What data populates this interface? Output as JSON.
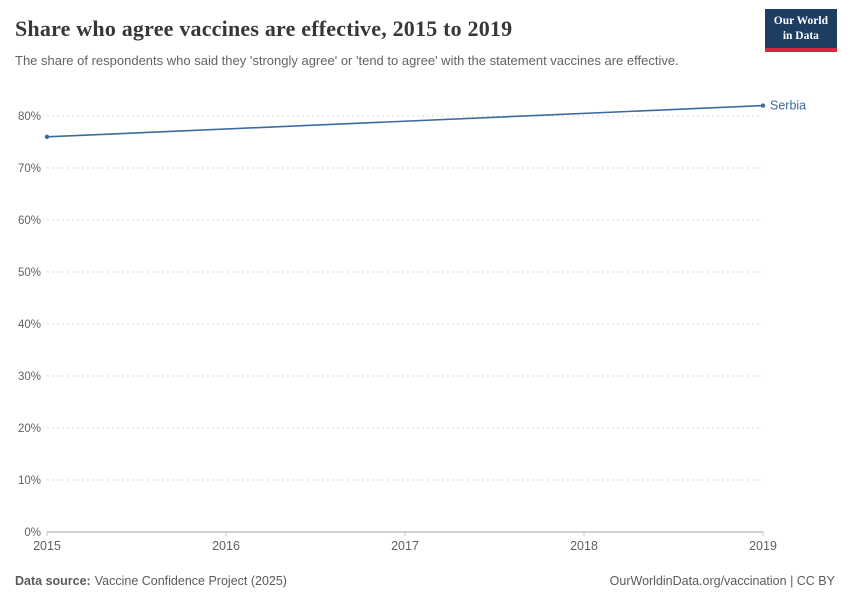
{
  "header": {
    "title": "Share who agree vaccines are effective, 2015 to 2019",
    "subtitle": "The share of respondents who said they 'strongly agree' or 'tend to agree' with the statement vaccines are effective.",
    "logo": {
      "line1": "Our World",
      "line2": "in Data",
      "bg_color": "#1d3d63",
      "accent_color": "#d7263d"
    }
  },
  "chart_data": {
    "type": "line",
    "title": "Share who agree vaccines are effective, 2015 to 2019",
    "x": [
      2015,
      2019
    ],
    "series": [
      {
        "name": "Serbia",
        "color": "#3d6a9e",
        "values": [
          76,
          82
        ]
      }
    ],
    "xticks": [
      2015,
      2016,
      2017,
      2018,
      2019
    ],
    "yticks": [
      0,
      10,
      20,
      30,
      40,
      50,
      60,
      70,
      80
    ],
    "ytick_suffix": "%",
    "xlim": [
      2015,
      2019
    ],
    "ylim": [
      0,
      85
    ],
    "grid": "horizontal-dashed",
    "legend_position": "end-of-line"
  },
  "footer": {
    "source_label": "Data source:",
    "source_value": "Vaccine Confidence Project (2025)",
    "license": "OurWorldinData.org/vaccination | CC BY"
  }
}
